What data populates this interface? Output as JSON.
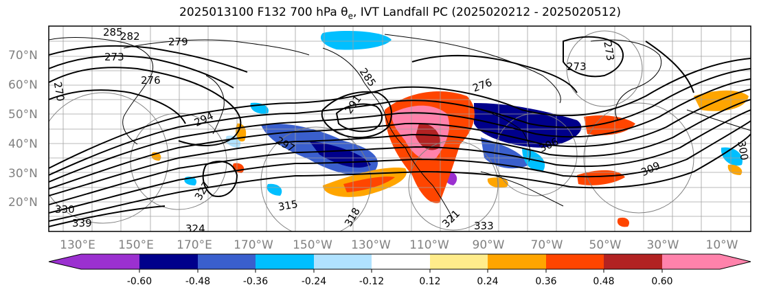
{
  "title": "2025013100 F132 700 hPa θe, IVT Landfall PC (2025020212 - 2025020512)",
  "title_parts": {
    "before": "2025013100 F132 700 hPa θ",
    "sub": "e",
    "after": ", IVT Landfall PC (2025020212 - 2025020512)"
  },
  "lat_labels": [
    "70°N",
    "60°N",
    "50°N",
    "40°N",
    "30°N",
    "20°N"
  ],
  "lon_labels": [
    "130°E",
    "150°E",
    "170°E",
    "170°W",
    "150°W",
    "130°W",
    "110°W",
    "90°W",
    "70°W",
    "50°W",
    "30°W",
    "10°W"
  ],
  "colorbar": {
    "colors": [
      "#9b30d0",
      "#00008b",
      "#3a5fcd",
      "#00bfff",
      "#b0e2ff",
      "#ffffff",
      "#ffec8b",
      "#ffa500",
      "#ff4500",
      "#b22222",
      "#ff82ab"
    ],
    "tick_labels": [
      "-0.60",
      "-0.48",
      "-0.36",
      "-0.24",
      "-0.12",
      "0.12",
      "0.24",
      "0.36",
      "0.48",
      "0.60"
    ]
  },
  "contour_labels": [
    "285",
    "282",
    "279",
    "273",
    "276",
    "270",
    "294",
    "297",
    "285",
    "276",
    "291",
    "273",
    "273",
    "300",
    "309",
    "306",
    "327",
    "315",
    "330",
    "339",
    "324",
    "318",
    "321",
    "333"
  ]
}
